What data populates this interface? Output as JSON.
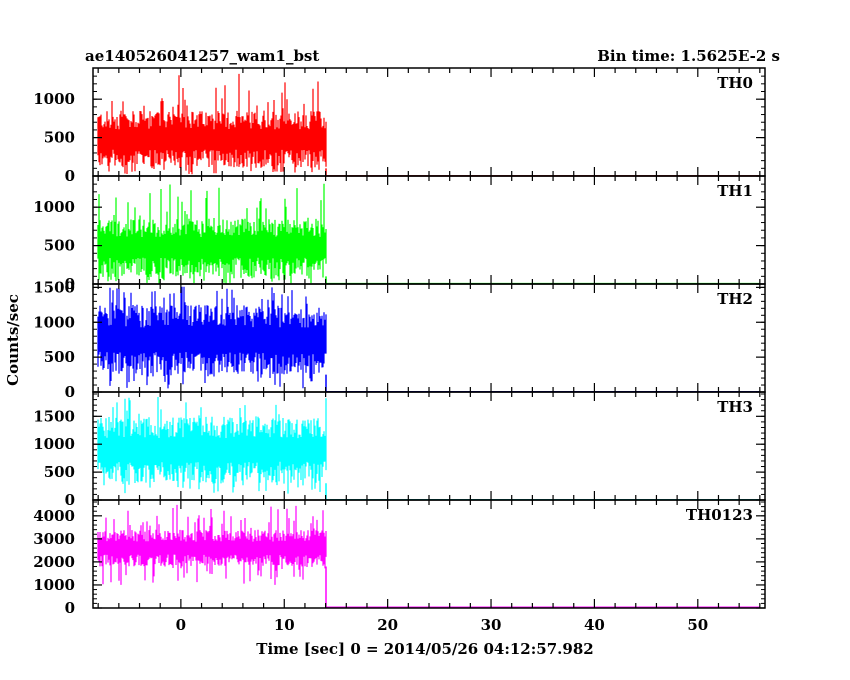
{
  "header": {
    "left_title": "ae140526041257_wam1_bst",
    "right_title": "Bin time: 1.5625E-2 s"
  },
  "chart_data": {
    "type": "line",
    "xlabel": "Time [sec] 0 = 2014/05/26 04:12:57.982",
    "ylabel": "Counts/sec",
    "xlim": [
      -8.5,
      56.5
    ],
    "x_ticks": [
      0,
      10,
      20,
      30,
      40,
      50
    ],
    "x_tick_labels": [
      "0",
      "10",
      "20",
      "30",
      "40",
      "50"
    ],
    "burst_interval": [
      -8,
      14
    ],
    "data_end": 56,
    "panels": [
      {
        "name": "TH0",
        "color": "#ff0000",
        "ylim": [
          0,
          1380
        ],
        "y_ticks": [
          0,
          500,
          1000
        ],
        "y_tick_labels": [
          "0",
          "500",
          "1000"
        ],
        "burst_envelope": {
          "min": 0,
          "typical_low": 100,
          "typical_high": 850,
          "max": 1350
        },
        "baseline": 2
      },
      {
        "name": "TH1",
        "color": "#00ff00",
        "ylim": [
          0,
          1380
        ],
        "y_ticks": [
          0,
          500,
          1000
        ],
        "y_tick_labels": [
          "0",
          "500",
          "1000"
        ],
        "burst_envelope": {
          "min": 0,
          "typical_low": 100,
          "typical_high": 850,
          "max": 1380
        },
        "baseline": 5
      },
      {
        "name": "TH2",
        "color": "#0000ff",
        "ylim": [
          0,
          1520
        ],
        "y_ticks": [
          0,
          500,
          1000,
          1500
        ],
        "y_tick_labels": [
          "0",
          "500",
          "1000",
          "1500"
        ],
        "burst_envelope": {
          "min": 50,
          "typical_low": 250,
          "typical_high": 1250,
          "max": 1520
        },
        "baseline": 3
      },
      {
        "name": "TH3",
        "color": "#00ffff",
        "ylim": [
          0,
          1900
        ],
        "y_ticks": [
          0,
          500,
          1000,
          1500
        ],
        "y_tick_labels": [
          "0",
          "500",
          "1000",
          "1500"
        ],
        "burst_envelope": {
          "min": 100,
          "typical_low": 300,
          "typical_high": 1500,
          "max": 1870
        },
        "baseline": 4
      },
      {
        "name": "TH0123",
        "color": "#ff00ff",
        "ylim": [
          0,
          4600
        ],
        "y_ticks": [
          0,
          1000,
          2000,
          3000,
          4000
        ],
        "y_tick_labels": [
          "0",
          "1000",
          "2000",
          "3000",
          "4000"
        ],
        "burst_envelope": {
          "min": 1000,
          "typical_low": 1800,
          "typical_high": 3400,
          "max": 4500
        },
        "baseline": 30
      }
    ]
  }
}
